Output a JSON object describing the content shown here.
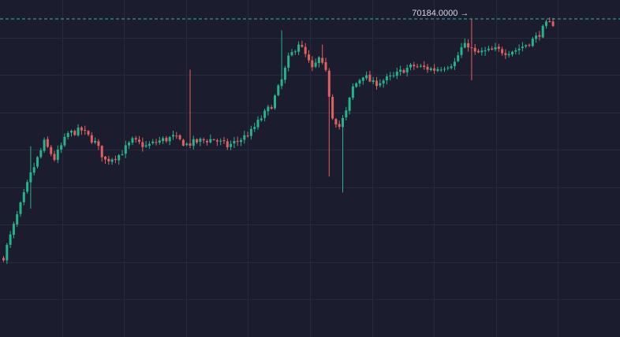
{
  "chart_data": {
    "type": "candlestick",
    "grid": true,
    "grid_line_count": {
      "horizontal": 8,
      "vertical": 9
    },
    "colors": {
      "background": "#1b1d2e",
      "grid": "#262a3d",
      "up": "#26b28a",
      "down": "#e06060",
      "max_line": "#2ab7a8",
      "label": "#d6d8e3"
    },
    "ylim": [
      68400,
      70290
    ],
    "max_marker": {
      "value": "70184.0000",
      "arrow": "→"
    },
    "anchors": [
      {
        "i": 0,
        "v": 68850
      },
      {
        "i": 4,
        "v": 69080
      },
      {
        "i": 8,
        "v": 69310
      },
      {
        "i": 12,
        "v": 69490
      },
      {
        "i": 15,
        "v": 69400
      },
      {
        "i": 19,
        "v": 69540
      },
      {
        "i": 23,
        "v": 69560
      },
      {
        "i": 27,
        "v": 69490
      },
      {
        "i": 30,
        "v": 69390
      },
      {
        "i": 34,
        "v": 69420
      },
      {
        "i": 38,
        "v": 69500
      },
      {
        "i": 42,
        "v": 69470
      },
      {
        "i": 46,
        "v": 69500
      },
      {
        "i": 50,
        "v": 69520
      },
      {
        "i": 54,
        "v": 69480
      },
      {
        "i": 58,
        "v": 69500
      },
      {
        "i": 62,
        "v": 69510
      },
      {
        "i": 66,
        "v": 69470
      },
      {
        "i": 70,
        "v": 69510
      },
      {
        "i": 73,
        "v": 69550
      },
      {
        "i": 76,
        "v": 69630
      },
      {
        "i": 79,
        "v": 69700
      },
      {
        "i": 82,
        "v": 69840
      },
      {
        "i": 84,
        "v": 69960
      },
      {
        "i": 87,
        "v": 70050
      },
      {
        "i": 89,
        "v": 69980
      },
      {
        "i": 91,
        "v": 69900
      },
      {
        "i": 93,
        "v": 69960
      },
      {
        "i": 95,
        "v": 69880
      },
      {
        "i": 97,
        "v": 69640
      },
      {
        "i": 99,
        "v": 69580
      },
      {
        "i": 101,
        "v": 69660
      },
      {
        "i": 103,
        "v": 69800
      },
      {
        "i": 106,
        "v": 69870
      },
      {
        "i": 109,
        "v": 69820
      },
      {
        "i": 112,
        "v": 69840
      },
      {
        "i": 115,
        "v": 69860
      },
      {
        "i": 118,
        "v": 69900
      },
      {
        "i": 121,
        "v": 69920
      },
      {
        "i": 124,
        "v": 69910
      },
      {
        "i": 127,
        "v": 69900
      },
      {
        "i": 130,
        "v": 69920
      },
      {
        "i": 133,
        "v": 69940
      },
      {
        "i": 135,
        "v": 70020
      },
      {
        "i": 137,
        "v": 70040
      },
      {
        "i": 139,
        "v": 69990
      },
      {
        "i": 142,
        "v": 70000
      },
      {
        "i": 145,
        "v": 70010
      },
      {
        "i": 148,
        "v": 70000
      },
      {
        "i": 151,
        "v": 70010
      },
      {
        "i": 154,
        "v": 70040
      },
      {
        "i": 157,
        "v": 70080
      },
      {
        "i": 160,
        "v": 70150
      },
      {
        "i": 162,
        "v": 70160
      }
    ],
    "spikes": [
      {
        "i": 8,
        "hi": 69470,
        "lo": 69120
      },
      {
        "i": 55,
        "hi": 69900
      },
      {
        "i": 82,
        "hi": 70120
      },
      {
        "i": 86,
        "hi": 69810
      },
      {
        "i": 94,
        "hi": 70040
      },
      {
        "i": 96,
        "lo": 69300
      },
      {
        "i": 100,
        "lo": 69210
      },
      {
        "i": 125,
        "lo": 69900
      },
      {
        "i": 138,
        "hi": 70184,
        "lo": 69840
      }
    ]
  }
}
